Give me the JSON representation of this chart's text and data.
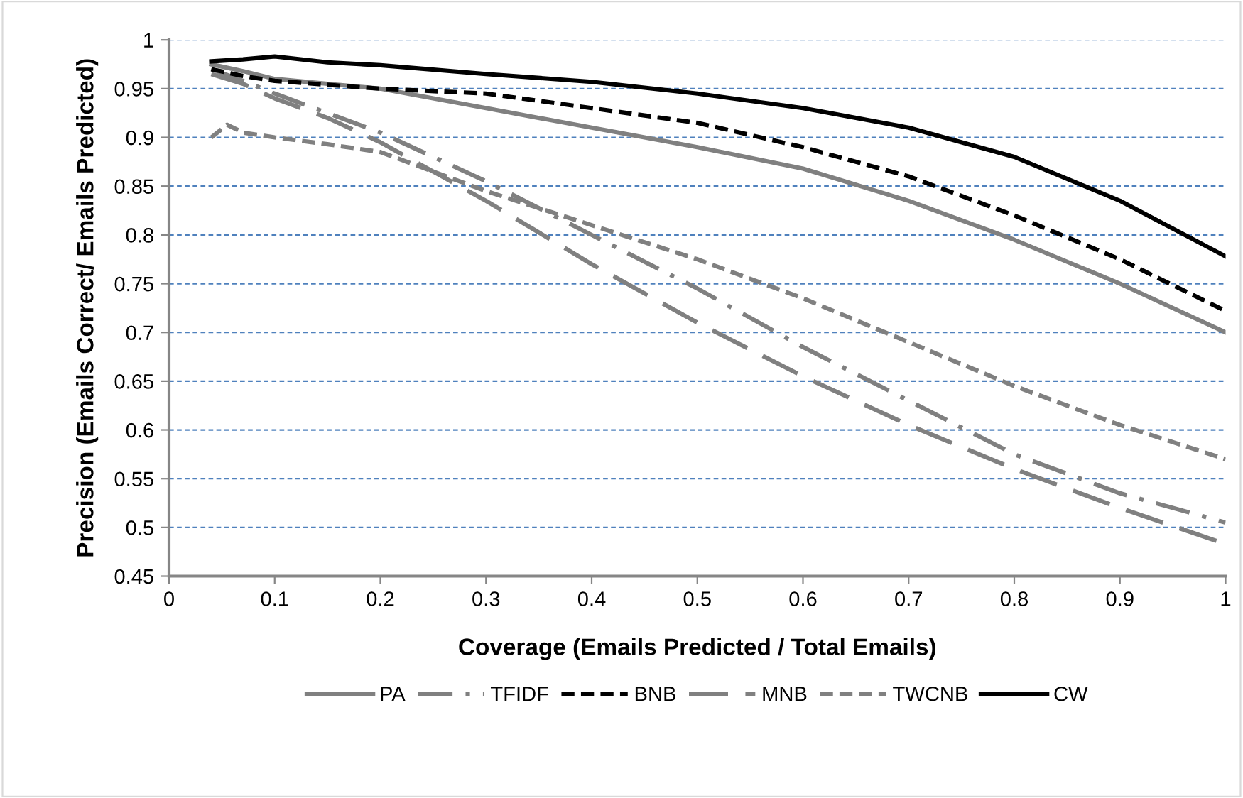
{
  "chart_data": {
    "type": "line",
    "xlabel": "Coverage (Emails Predicted / Total Emails)",
    "ylabel": "Precision (Emails Correct/ Emails Predicted)",
    "x": [
      0.04,
      0.07,
      0.1,
      0.15,
      0.2,
      0.3,
      0.4,
      0.5,
      0.6,
      0.7,
      0.8,
      0.9,
      1.0
    ],
    "series": [
      {
        "name": "PA",
        "color": "#808080",
        "line_style": "solid",
        "values": [
          0.975,
          0.968,
          0.96,
          0.955,
          0.95,
          0.93,
          0.91,
          0.89,
          0.868,
          0.835,
          0.795,
          0.75,
          0.7
        ]
      },
      {
        "name": "TFIDF",
        "color": "#808080",
        "line_style": "dashdot",
        "values": [
          0.97,
          0.958,
          0.945,
          0.925,
          0.905,
          0.855,
          0.8,
          0.745,
          0.685,
          0.63,
          0.575,
          0.535,
          0.505
        ]
      },
      {
        "name": "BNB",
        "color": "#000000",
        "line_style": "dashed",
        "values": [
          0.97,
          0.963,
          0.958,
          0.954,
          0.95,
          0.945,
          0.93,
          0.915,
          0.89,
          0.86,
          0.82,
          0.775,
          0.722
        ]
      },
      {
        "name": "MNB",
        "color": "#808080",
        "line_style": "longdash",
        "values": [
          0.965,
          0.955,
          0.94,
          0.92,
          0.895,
          0.835,
          0.77,
          0.71,
          0.655,
          0.605,
          0.56,
          0.52,
          0.483
        ]
      },
      {
        "name": "TWCNB",
        "color": "#808080",
        "line_style": "dashed",
        "x": [
          0.04,
          0.055,
          0.07,
          0.1,
          0.15,
          0.2,
          0.3,
          0.4,
          0.5,
          0.6,
          0.7,
          0.8,
          0.9,
          1.0
        ],
        "values": [
          0.9,
          0.913,
          0.905,
          0.9,
          0.893,
          0.885,
          0.845,
          0.81,
          0.775,
          0.735,
          0.69,
          0.645,
          0.605,
          0.57
        ]
      },
      {
        "name": "CW",
        "color": "#000000",
        "line_style": "solid",
        "values": [
          0.978,
          0.98,
          0.983,
          0.977,
          0.974,
          0.965,
          0.957,
          0.945,
          0.93,
          0.91,
          0.88,
          0.835,
          0.778
        ]
      }
    ],
    "xlim": [
      0,
      1
    ],
    "xticks": [
      0,
      0.1,
      0.2,
      0.3,
      0.4,
      0.5,
      0.6,
      0.7,
      0.8,
      0.9,
      1
    ],
    "ylim": [
      0.45,
      1
    ],
    "yticks": [
      0.45,
      0.5,
      0.55,
      0.6,
      0.65,
      0.7,
      0.75,
      0.8,
      0.85,
      0.9,
      0.95,
      1
    ],
    "grid": "y",
    "legend": "bottom",
    "marker": "none"
  }
}
